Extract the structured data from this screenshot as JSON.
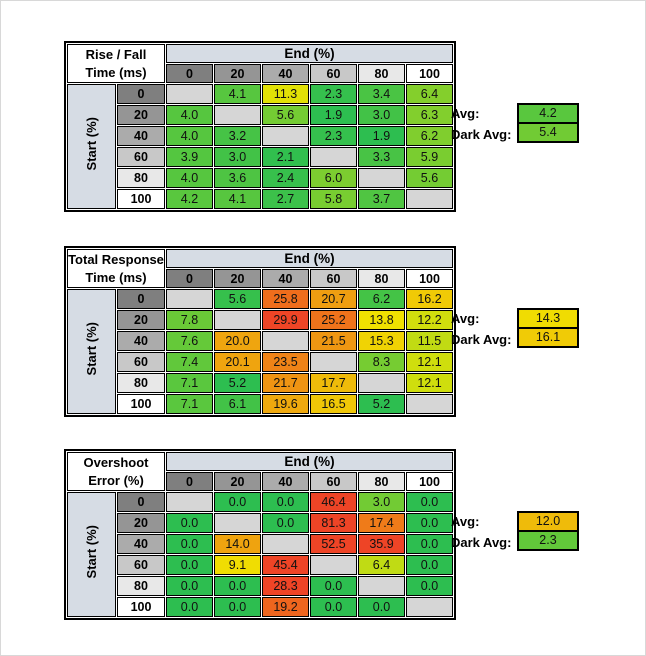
{
  "style": {
    "colormap": {
      "green": "#2DBE50",
      "yellow": "#F0E400",
      "red": "#EE4426"
    },
    "blank_cell": "#D6D6D6",
    "band_fill": "#D6DCE4",
    "header_shades": [
      "#7F7F7F",
      "#959595",
      "#ABABAB",
      "#C8C8C8",
      "#E8E8E8",
      "#FFFFFF"
    ],
    "grid_color": "#000000"
  },
  "labels": {
    "end_header": "End (%)",
    "start_label": "Start (%)",
    "avg_label": "Avg:",
    "dark_avg_label": "Dark Avg:"
  },
  "chart_data": [
    {
      "type": "heatmap",
      "title_line1": "Rise / Fall",
      "title_line2": "Time (ms)",
      "x_label": "End (%)",
      "y_label": "Start (%)",
      "x_ticks": [
        "0",
        "20",
        "40",
        "60",
        "80",
        "100"
      ],
      "y_ticks": [
        "0",
        "20",
        "40",
        "60",
        "80",
        "100"
      ],
      "rows": [
        [
          null,
          4.1,
          11.3,
          2.3,
          3.4,
          6.4
        ],
        [
          4.0,
          null,
          5.6,
          1.9,
          3.0,
          6.3
        ],
        [
          4.0,
          3.2,
          null,
          2.3,
          1.9,
          6.2
        ],
        [
          3.9,
          3.0,
          2.1,
          null,
          3.3,
          5.9
        ],
        [
          4.0,
          3.6,
          2.4,
          6.0,
          null,
          5.6
        ],
        [
          4.2,
          4.1,
          2.7,
          5.8,
          3.7,
          null
        ]
      ],
      "avg": 4.2,
      "dark_avg": 5.4,
      "color_anchors": {
        "green_at": 1.9,
        "yellow_at": 12.0,
        "red_at": 30.0
      }
    },
    {
      "type": "heatmap",
      "title_line1": "Total Response",
      "title_line2": "Time (ms)",
      "x_label": "End (%)",
      "y_label": "Start (%)",
      "x_ticks": [
        "0",
        "20",
        "40",
        "60",
        "80",
        "100"
      ],
      "y_ticks": [
        "0",
        "20",
        "40",
        "60",
        "80",
        "100"
      ],
      "rows": [
        [
          null,
          5.6,
          25.8,
          20.7,
          6.2,
          16.2
        ],
        [
          7.8,
          null,
          29.9,
          25.2,
          13.8,
          12.2
        ],
        [
          7.6,
          20.0,
          null,
          21.5,
          15.3,
          11.5
        ],
        [
          7.4,
          20.1,
          23.5,
          null,
          8.3,
          12.1
        ],
        [
          7.1,
          5.2,
          21.7,
          17.7,
          null,
          12.1
        ],
        [
          7.1,
          6.1,
          19.6,
          16.5,
          5.2,
          null
        ]
      ],
      "avg": 14.3,
      "dark_avg": 16.1,
      "color_anchors": {
        "green_at": 5.2,
        "yellow_at": 13.5,
        "red_at": 30.0
      }
    },
    {
      "type": "heatmap",
      "title_line1": "Overshoot",
      "title_line2": "Error (%)",
      "x_label": "End (%)",
      "y_label": "Start (%)",
      "x_ticks": [
        "0",
        "20",
        "40",
        "60",
        "80",
        "100"
      ],
      "y_ticks": [
        "0",
        "20",
        "40",
        "60",
        "80",
        "100"
      ],
      "rows": [
        [
          null,
          0.0,
          0.0,
          46.4,
          3.0,
          0.0
        ],
        [
          0.0,
          null,
          0.0,
          81.3,
          17.4,
          0.0
        ],
        [
          0.0,
          14.0,
          null,
          52.5,
          35.9,
          0.0
        ],
        [
          0.0,
          9.1,
          45.4,
          null,
          6.4,
          0.0
        ],
        [
          0.0,
          0.0,
          28.3,
          0.0,
          null,
          0.0
        ],
        [
          0.0,
          0.0,
          19.2,
          0.0,
          0.0,
          null
        ]
      ],
      "avg": 12.0,
      "dark_avg": 2.3,
      "color_anchors": {
        "green_at": 0.0,
        "yellow_at": 8.5,
        "red_at": 22.0
      }
    }
  ]
}
